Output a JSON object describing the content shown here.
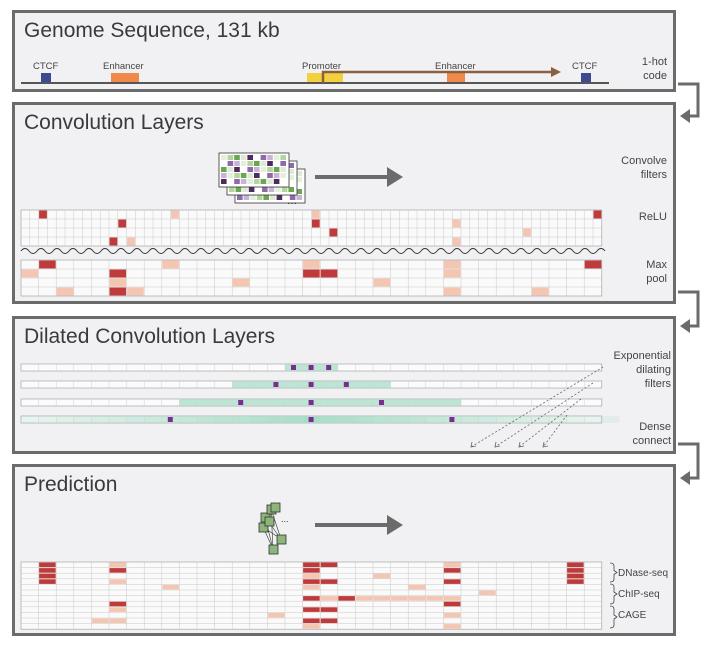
{
  "panels": {
    "genome": {
      "title": "Genome Sequence, 131 kb",
      "labels": {
        "ctcf_left": "CTCF",
        "enhancer_left": "Enhancer",
        "promoter": "Promoter",
        "enhancer_right": "Enhancer",
        "ctcf_right": "CTCF"
      },
      "side_line1": "1-hot",
      "side_line2": "code"
    },
    "conv": {
      "title": "Convolution Layers",
      "filters_line1": "Convolve",
      "filters_line2": "filters",
      "relu": "ReLU",
      "maxpool_line1": "Max",
      "maxpool_line2": "pool"
    },
    "dilated": {
      "title": "Dilated Convolution Layers",
      "filters_line1": "Exponential",
      "filters_line2": "dilating",
      "filters_line3": "filters",
      "dense_line1": "Dense",
      "dense_line2": "connect"
    },
    "prediction": {
      "title": "Prediction",
      "tracks": [
        "DNase-seq",
        "ChIP-seq",
        "CAGE"
      ]
    }
  },
  "colors": {
    "panel_border": "#6b6b6b",
    "ctcf": "#3c4a91",
    "enhancer": "#f08a4b",
    "promoter": "#f4d03f",
    "arrow": "#8a6040",
    "activation_strong": "#bf3a3a",
    "activation_weak": "#f4c5b0",
    "dilation_fill": "#a9dcc8",
    "dilation_tap": "#7b2d8e"
  }
}
